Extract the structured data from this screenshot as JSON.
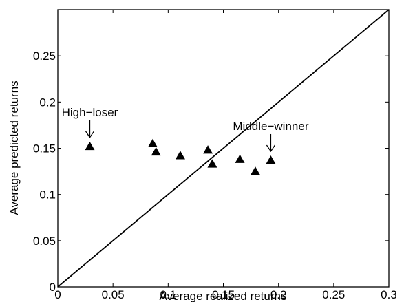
{
  "chart_data": {
    "type": "scatter",
    "title": "",
    "xlabel": "Average realized returns",
    "ylabel": "Average predicted returns",
    "xlim": [
      0,
      0.3
    ],
    "ylim": [
      0,
      0.3
    ],
    "xticks": [
      0,
      0.05,
      0.1,
      0.15,
      0.2,
      0.25,
      0.3
    ],
    "xtick_labels": [
      "0",
      "0.05",
      "0.1",
      "0.15",
      "0.2",
      "0.25",
      "0.3"
    ],
    "yticks": [
      0,
      0.05,
      0.1,
      0.15,
      0.2,
      0.25
    ],
    "ytick_labels": [
      "0",
      "0.05",
      "0.1",
      "0.15",
      "0.2",
      "0.25"
    ],
    "grid": false,
    "marker": "filled-triangle",
    "points": [
      {
        "x": 0.029,
        "y": 0.152
      },
      {
        "x": 0.086,
        "y": 0.155
      },
      {
        "x": 0.089,
        "y": 0.146
      },
      {
        "x": 0.111,
        "y": 0.142
      },
      {
        "x": 0.136,
        "y": 0.148
      },
      {
        "x": 0.14,
        "y": 0.133
      },
      {
        "x": 0.165,
        "y": 0.138
      },
      {
        "x": 0.179,
        "y": 0.125
      },
      {
        "x": 0.193,
        "y": 0.137
      }
    ],
    "reference_line": {
      "type": "diagonal",
      "from": [
        0,
        0
      ],
      "to": [
        0.3,
        0.3
      ]
    },
    "annotations": [
      {
        "text": "High−loser",
        "point_index": 0
      },
      {
        "text": "Middle−winner",
        "point_index": 8
      }
    ]
  }
}
